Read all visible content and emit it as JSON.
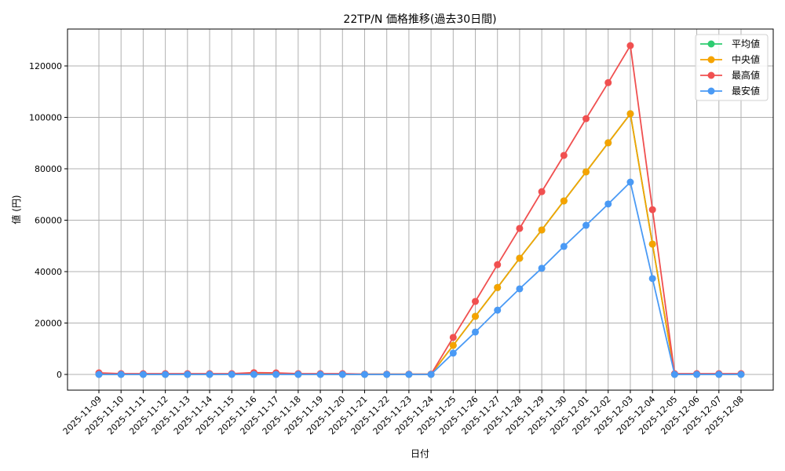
{
  "chart_data": {
    "type": "line",
    "title": "22TP/N 価格推移(過去30日間)",
    "xlabel": "日付",
    "ylabel": "値 (円)",
    "ylim": [
      -6000,
      134000
    ],
    "yticks": [
      0,
      20000,
      40000,
      60000,
      80000,
      100000,
      120000
    ],
    "grid": true,
    "legend_position": "upper right",
    "x": [
      "2025-11-09",
      "2025-11-10",
      "2025-11-11",
      "2025-11-12",
      "2025-11-13",
      "2025-11-14",
      "2025-11-15",
      "2025-11-16",
      "2025-11-17",
      "2025-11-18",
      "2025-11-19",
      "2025-11-20",
      "2025-11-21",
      "2025-11-22",
      "2025-11-23",
      "2025-11-24",
      "2025-11-25",
      "2025-11-26",
      "2025-11-27",
      "2025-11-28",
      "2025-11-29",
      "2025-11-30",
      "2025-12-01",
      "2025-12-02",
      "2025-12-03",
      "2025-12-04",
      "2025-12-05",
      "2025-12-06",
      "2025-12-07",
      "2025-12-08"
    ],
    "series": [
      {
        "name": "平均値",
        "color": "#2ecc71",
        "values": [
          100,
          50,
          50,
          50,
          50,
          50,
          80,
          150,
          150,
          80,
          80,
          50,
          50,
          50,
          50,
          50,
          11300,
          22600,
          33800,
          45200,
          56200,
          67500,
          78800,
          90100,
          101400,
          50700,
          80,
          80,
          80,
          80
        ]
      },
      {
        "name": "中央値",
        "color": "#f5a300",
        "values": [
          50,
          50,
          50,
          50,
          50,
          50,
          80,
          100,
          100,
          50,
          50,
          50,
          50,
          50,
          50,
          50,
          11300,
          22600,
          33800,
          45200,
          56200,
          67500,
          78800,
          90100,
          101400,
          50700,
          50,
          50,
          50,
          50
        ]
      },
      {
        "name": "最高値",
        "color": "#f05050",
        "values": [
          600,
          300,
          300,
          300,
          300,
          300,
          300,
          700,
          600,
          300,
          300,
          300,
          100,
          100,
          100,
          100,
          14400,
          28400,
          42700,
          56800,
          71100,
          85200,
          99500,
          113500,
          127900,
          64100,
          300,
          300,
          300,
          300
        ]
      },
      {
        "name": "最安値",
        "color": "#4a9af5",
        "values": [
          0,
          0,
          0,
          0,
          0,
          0,
          0,
          0,
          0,
          0,
          0,
          0,
          0,
          0,
          0,
          0,
          8300,
          16500,
          25000,
          33300,
          41300,
          49800,
          58000,
          66300,
          74800,
          37300,
          0,
          0,
          0,
          0
        ]
      }
    ]
  },
  "labels": {
    "title": "22TP/N 価格推移(過去30日間)",
    "xlabel": "日付",
    "ylabel": "値 (円)",
    "legend": [
      "平均値",
      "中央値",
      "最高値",
      "最安値"
    ]
  }
}
